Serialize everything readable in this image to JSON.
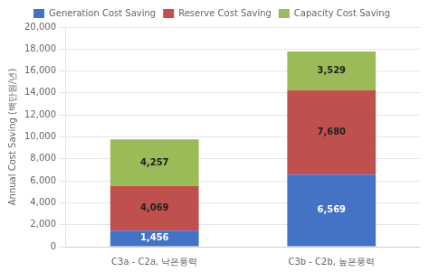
{
  "chart_data": {
    "type": "bar",
    "stacked": true,
    "categories": [
      "C3a - C2a, 낙은풍력",
      "C3b - C2b, 높은풍력"
    ],
    "series": [
      {
        "name": "Generation Cost Saving",
        "color": "#4472C4",
        "values": [
          1456,
          6569
        ],
        "value_labels": [
          "1,456",
          "6,569"
        ]
      },
      {
        "name": "Reserve Cost Saving",
        "color": "#C0504D",
        "values": [
          4069,
          7680
        ],
        "value_labels": [
          "4,069",
          "7,680"
        ]
      },
      {
        "name": "Capacity Cost Saving",
        "color": "#9BBB59",
        "values": [
          4257,
          3529
        ],
        "value_labels": [
          "4,257",
          "3,529"
        ]
      }
    ],
    "ylabel": "Annual Cost Saving (백만원/년)",
    "ylim": [
      0,
      20000
    ],
    "yticks": [
      0,
      {
        "value": 2000,
        "label": "2,000"
      },
      {
        "value": 4000,
        "label": "4,000"
      },
      {
        "value": 6000,
        "label": "6,000"
      },
      {
        "value": 8000,
        "label": "8,000"
      },
      {
        "value": 10000,
        "label": "10,000"
      },
      {
        "value": 12000,
        "label": "12,000"
      },
      {
        "value": 14000,
        "label": "14,000"
      },
      {
        "value": 16000,
        "label": "16,000"
      },
      {
        "value": 18000,
        "label": "18,000"
      },
      {
        "value": 20000,
        "label": "20,000"
      }
    ],
    "grid": true,
    "legend": "top",
    "data_labels": true
  }
}
